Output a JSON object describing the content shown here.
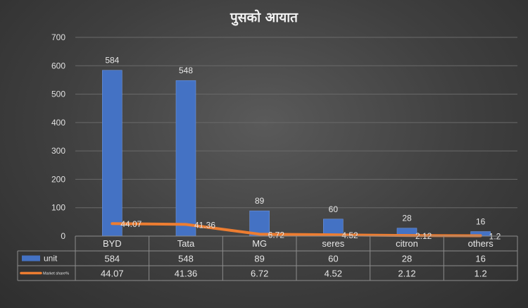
{
  "chart_data": {
    "type": "bar",
    "title": "पुसको आयात",
    "categories": [
      "BYD",
      "Tata",
      "MG",
      "seres",
      "citron",
      "others"
    ],
    "ylim": [
      0,
      700
    ],
    "yticks": [
      0,
      100,
      200,
      300,
      400,
      500,
      600,
      700
    ],
    "grid": true,
    "legend": "data-table",
    "series": [
      {
        "name": "unit",
        "type": "bar",
        "values": [
          584,
          548,
          89,
          60,
          28,
          16
        ],
        "color": "#4472c4"
      },
      {
        "name": "Market share%",
        "type": "line",
        "values": [
          44.07,
          41.36,
          6.72,
          4.52,
          2.12,
          1.2
        ],
        "color": "#ed7d31"
      }
    ]
  }
}
